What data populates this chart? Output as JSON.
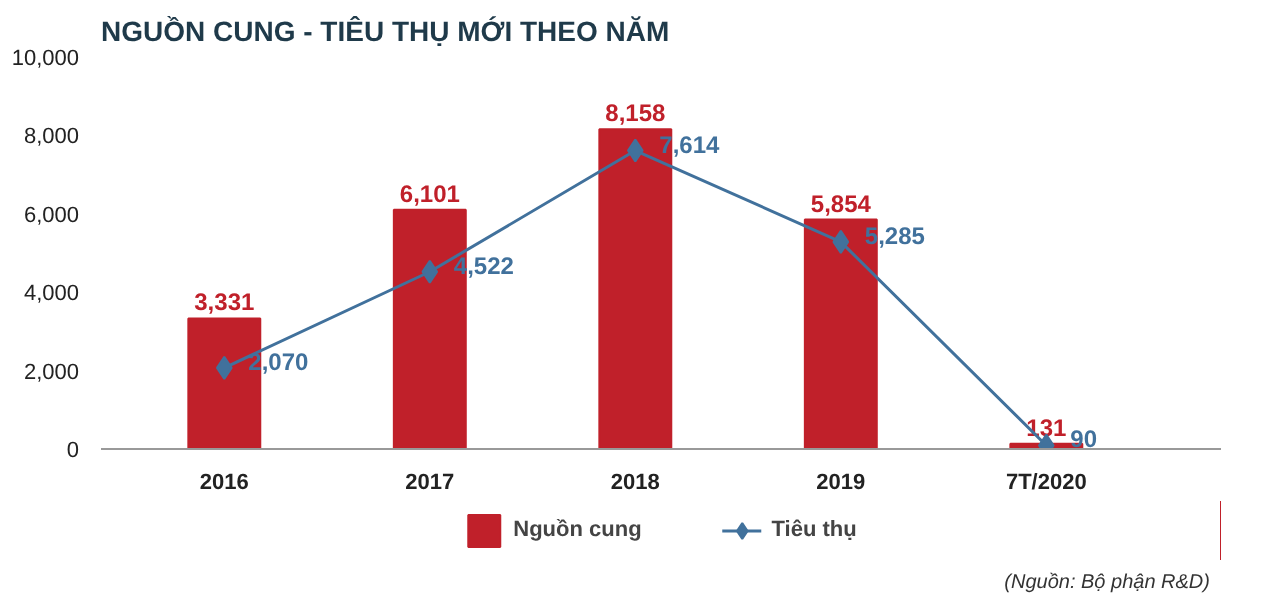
{
  "chart_data": {
    "type": "bar",
    "title": "NGUỒN CUNG - TIÊU THỤ MỚI THEO NĂM",
    "categories": [
      "2016",
      "2017",
      "2018",
      "2019",
      "7T/2020"
    ],
    "series": [
      {
        "name": "Nguồn cung",
        "color": "#c0202a",
        "values": [
          3331,
          6101,
          8158,
          5854,
          131
        ],
        "value_labels": [
          "3,331",
          "6,101",
          "8,158",
          "5,854",
          "131"
        ]
      },
      {
        "name": "Tiêu thụ",
        "type": "line",
        "color": "#41719c",
        "values": [
          2070,
          4522,
          7614,
          5285,
          90
        ],
        "value_labels": [
          "2,070",
          "4,522",
          "7,614",
          "5,285",
          "90"
        ]
      }
    ],
    "ylim": [
      0,
      10000
    ],
    "yticks": [
      0,
      {
        "value": 2000,
        "label": "2,000"
      },
      {
        "value": 4000,
        "label": "4,000"
      },
      {
        "value": 6000,
        "label": "6,000"
      },
      {
        "value": 8000,
        "label": "8,000"
      },
      {
        "value": 10000,
        "label": "10,000"
      }
    ],
    "marker": "diamond",
    "legend": "bottom",
    "grid": false,
    "annotations": [
      "(Nguồn: Bộ phận R&D)"
    ]
  }
}
